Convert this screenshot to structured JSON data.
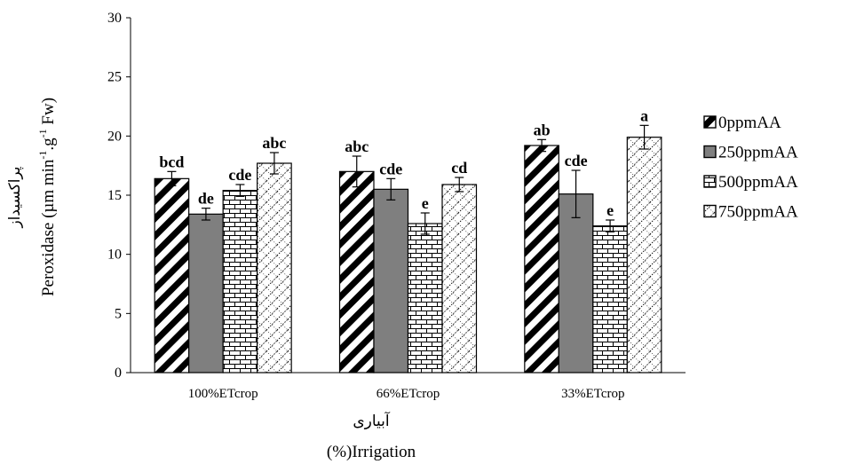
{
  "chart_data": {
    "type": "bar",
    "categories": [
      "100%ETcrop",
      "66%ETcrop",
      "33%ETcrop"
    ],
    "series": [
      {
        "name": "0ppmAA",
        "values": [
          16.4,
          17.0,
          19.2
        ],
        "errors": [
          0.6,
          1.3,
          0.5
        ],
        "letters": [
          "bcd",
          "abc",
          "ab"
        ],
        "pattern": "diag"
      },
      {
        "name": "250ppmAA",
        "values": [
          13.4,
          15.5,
          15.1
        ],
        "errors": [
          0.5,
          0.9,
          2.0
        ],
        "letters": [
          "de",
          "cde",
          "cde"
        ],
        "pattern": "gray"
      },
      {
        "name": "500ppmAA",
        "values": [
          15.4,
          12.6,
          12.4
        ],
        "errors": [
          0.5,
          0.9,
          0.5
        ],
        "letters": [
          "cde",
          "e",
          "e"
        ],
        "pattern": "brick"
      },
      {
        "name": "750ppmAA",
        "values": [
          17.7,
          15.9,
          19.9
        ],
        "errors": [
          0.9,
          0.6,
          1.0
        ],
        "letters": [
          "abc",
          "cd",
          "a"
        ],
        "pattern": "dots"
      }
    ],
    "ylim": [
      0,
      30
    ],
    "yticks": [
      "0",
      "5",
      "10",
      "15",
      "20",
      "25",
      "30"
    ],
    "ylabel_fa": "پراکسیداز",
    "ylabel_main": "Peroxidase (µm min",
    "ylabel_sup1": "-1",
    "ylabel_mid": ".g",
    "ylabel_sup2": "-1",
    "ylabel_end": " Fw)",
    "xlabel_fa": "آبیاری",
    "xlabel": "(%)Irrigation",
    "legend_position": "right",
    "grid": false,
    "colors": {
      "bar_gray": "#7f7f7f",
      "ink": "#000000"
    }
  }
}
